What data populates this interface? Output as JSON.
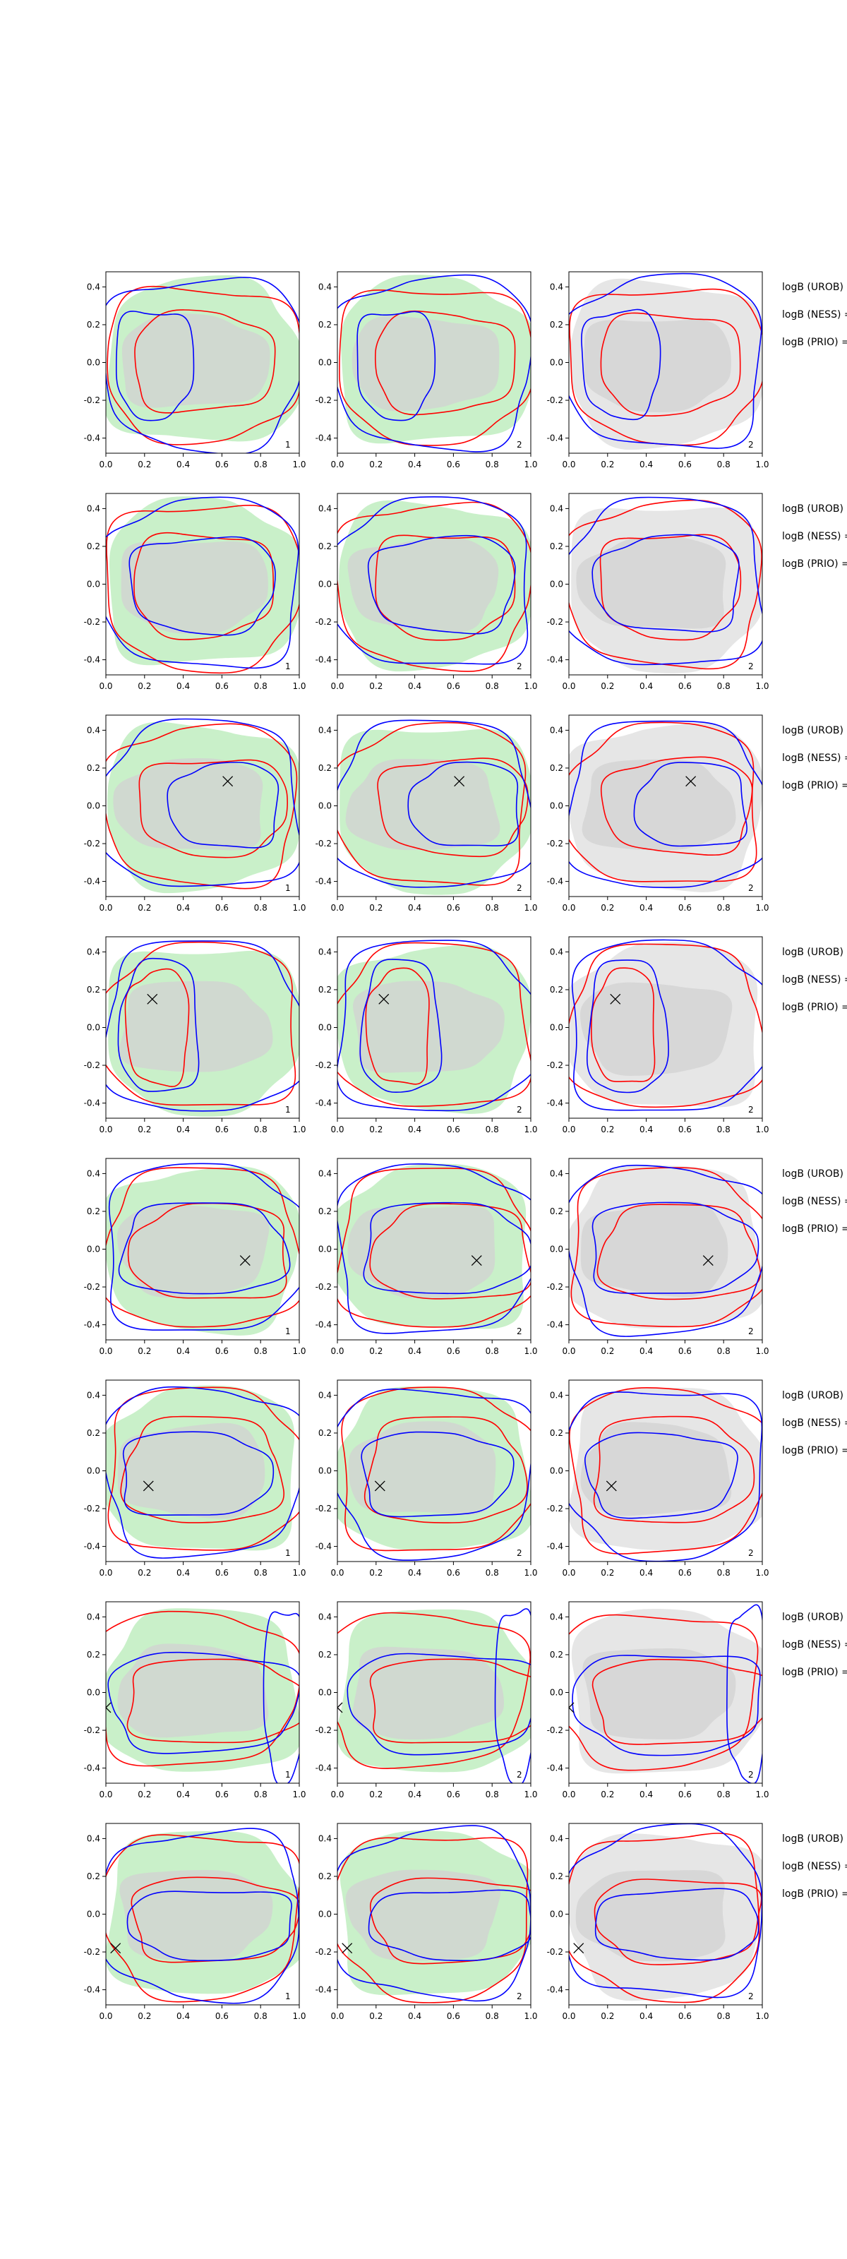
{
  "chart_data": {
    "type": "contour-grid",
    "rows": 8,
    "cols": 3,
    "xlim": [
      0.0,
      1.0
    ],
    "ylim": [
      -0.48,
      0.48
    ],
    "xticks": [
      0.0,
      0.2,
      0.4,
      0.6,
      0.8,
      1.0
    ],
    "yticks": [
      -0.4,
      -0.2,
      0.0,
      0.2,
      0.4
    ],
    "xtick_labels": [
      "0.0",
      "0.2",
      "0.4",
      "0.6",
      "0.8",
      "1.0"
    ],
    "ytick_labels": [
      "-0.4",
      "-0.2",
      "0.0",
      "0.2",
      "0.4"
    ],
    "column_numbers": [
      "1",
      "2",
      "2"
    ],
    "column_fill_colors": [
      "#c9f0c9",
      "#c9f0c9",
      "#e6e6e6"
    ],
    "inner_fill_color": "#d2d2d2",
    "line_colors": {
      "red": "#ff0000",
      "blue": "#0000ff"
    },
    "side_labels": [
      "logB (UROB) =",
      "logB (NESS) =",
      "logB (PRIO) ="
    ],
    "markers": [
      null,
      null,
      {
        "x": 0.63,
        "y": 0.13
      },
      {
        "x": 0.24,
        "y": 0.15
      },
      {
        "x": 0.72,
        "y": -0.06
      },
      {
        "x": 0.22,
        "y": -0.08
      },
      {
        "x": 0.0,
        "y": -0.08
      },
      {
        "x": 0.05,
        "y": -0.18
      }
    ],
    "rows_data": [
      {
        "red": [
          [
            0.5,
            0.0,
            0.36,
            0.26
          ],
          [
            0.5,
            0.0,
            0.5,
            0.4
          ]
        ],
        "blue": [
          [
            0.25,
            0.0,
            0.2,
            0.28
          ],
          [
            0.5,
            0.0,
            0.51,
            0.45
          ]
        ]
      },
      {
        "red": [
          [
            0.5,
            0.0,
            0.36,
            0.27
          ],
          [
            0.5,
            0.0,
            0.5,
            0.43
          ]
        ],
        "blue": [
          [
            0.5,
            0.0,
            0.37,
            0.25
          ],
          [
            0.5,
            0.0,
            0.51,
            0.44
          ]
        ]
      },
      {
        "red": [
          [
            0.55,
            0.0,
            0.38,
            0.25
          ],
          [
            0.5,
            0.0,
            0.49,
            0.42
          ]
        ],
        "blue": [
          [
            0.62,
            0.0,
            0.28,
            0.22
          ],
          [
            0.5,
            0.0,
            0.51,
            0.44
          ]
        ]
      },
      {
        "red": [
          [
            0.27,
            0.0,
            0.16,
            0.3
          ],
          [
            0.5,
            0.0,
            0.5,
            0.43
          ]
        ],
        "blue": [
          [
            0.28,
            0.0,
            0.2,
            0.35
          ],
          [
            0.5,
            0.0,
            0.51,
            0.45
          ]
        ]
      },
      {
        "red": [
          [
            0.55,
            -0.02,
            0.4,
            0.25
          ],
          [
            0.5,
            0.0,
            0.5,
            0.42
          ]
        ],
        "blue": [
          [
            0.5,
            0.0,
            0.42,
            0.24
          ],
          [
            0.5,
            0.0,
            0.51,
            0.44
          ]
        ]
      },
      {
        "red": [
          [
            0.5,
            0.0,
            0.4,
            0.28
          ],
          [
            0.5,
            0.0,
            0.5,
            0.43
          ]
        ],
        "blue": [
          [
            0.45,
            -0.02,
            0.38,
            0.22
          ],
          [
            0.5,
            0.0,
            0.51,
            0.44
          ]
        ]
      },
      {
        "red": [
          [
            0.55,
            -0.05,
            0.45,
            0.22
          ],
          [
            0.45,
            0.02,
            0.52,
            0.4
          ]
        ],
        "blue": [
          [
            0.5,
            -0.05,
            0.48,
            0.26
          ],
          [
            0.92,
            0.0,
            0.1,
            0.45
          ]
        ]
      },
      {
        "red": [
          [
            0.55,
            -0.03,
            0.42,
            0.22
          ],
          [
            0.5,
            0.0,
            0.5,
            0.43
          ]
        ],
        "blue": [
          [
            0.55,
            -0.05,
            0.42,
            0.18
          ],
          [
            0.5,
            0.0,
            0.51,
            0.44
          ]
        ]
      }
    ]
  }
}
